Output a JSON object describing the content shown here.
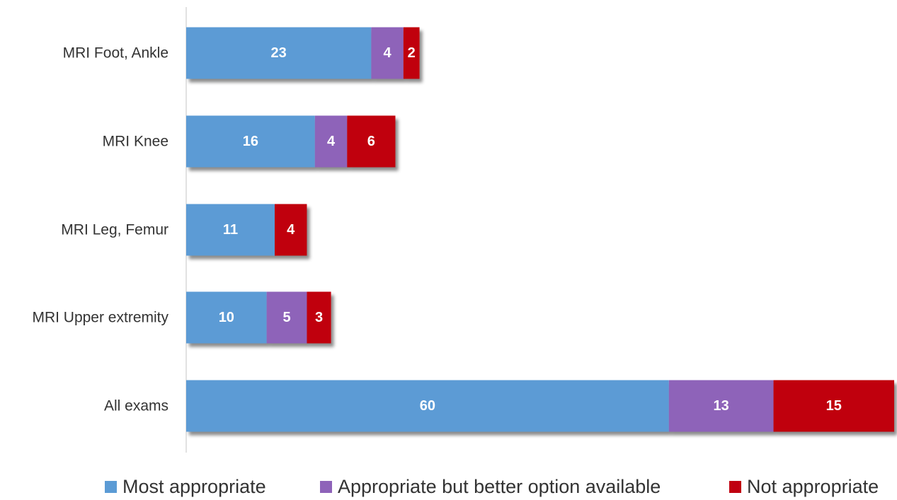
{
  "chart_data": {
    "type": "bar",
    "orientation": "horizontal",
    "stacked": true,
    "categories": [
      "MRI Foot, Ankle",
      "MRI Knee",
      "MRI Leg, Femur",
      "MRI Upper extremity",
      "All exams"
    ],
    "series": [
      {
        "name": "Most appropriate",
        "values": [
          23,
          16,
          11,
          10,
          60
        ],
        "color": "#5b9bd5"
      },
      {
        "name": "Appropriate but better option available",
        "values": [
          4,
          4,
          0,
          5,
          13
        ],
        "color": "#8e63b9"
      },
      {
        "name": "Not appropriate",
        "values": [
          2,
          6,
          4,
          3,
          15
        ],
        "color": "#c00010"
      }
    ],
    "title": "",
    "xlabel": "",
    "ylabel": "",
    "xlim": [
      0,
      88
    ],
    "grid": false,
    "legend_position": "bottom",
    "data_labels": true,
    "bar_shadow": true
  }
}
